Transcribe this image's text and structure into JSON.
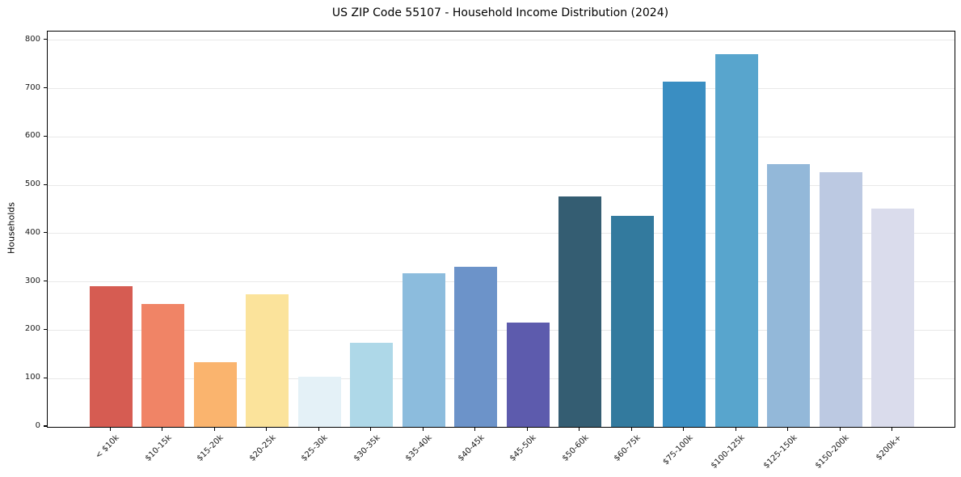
{
  "chart_data": {
    "type": "bar",
    "title": "US ZIP Code 55107 - Household Income Distribution (2024)",
    "xlabel": "",
    "ylabel": "Households",
    "categories": [
      "< $10k",
      "$10-15k",
      "$15-20k",
      "$20-25k",
      "$25-30k",
      "$30-35k",
      "$35-40k",
      "$40-45k",
      "$45-50k",
      "$50-60k",
      "$60-75k",
      "$75-100k",
      "$100-125k",
      "$125-150k",
      "$150-200k",
      "$200k+"
    ],
    "values": [
      291,
      255,
      134,
      275,
      104,
      174,
      317,
      331,
      216,
      477,
      437,
      715,
      771,
      543,
      527,
      452
    ],
    "bar_colors": [
      "#d65c52",
      "#f08466",
      "#fab46e",
      "#fbe39b",
      "#e4f1f7",
      "#aed8e8",
      "#8cbcdd",
      "#6c93c9",
      "#5d5bad",
      "#345d72",
      "#337a9e",
      "#3a8ec2",
      "#58a5cd",
      "#93b8d9",
      "#bcc9e2",
      "#dadcec"
    ],
    "yticks": [
      0,
      100,
      200,
      300,
      400,
      500,
      600,
      700,
      800
    ],
    "ylim": [
      0,
      818
    ],
    "grid": "horizontal-light",
    "legend": "none",
    "grid_color": "#e8e8e8",
    "text_color": "#000000"
  }
}
